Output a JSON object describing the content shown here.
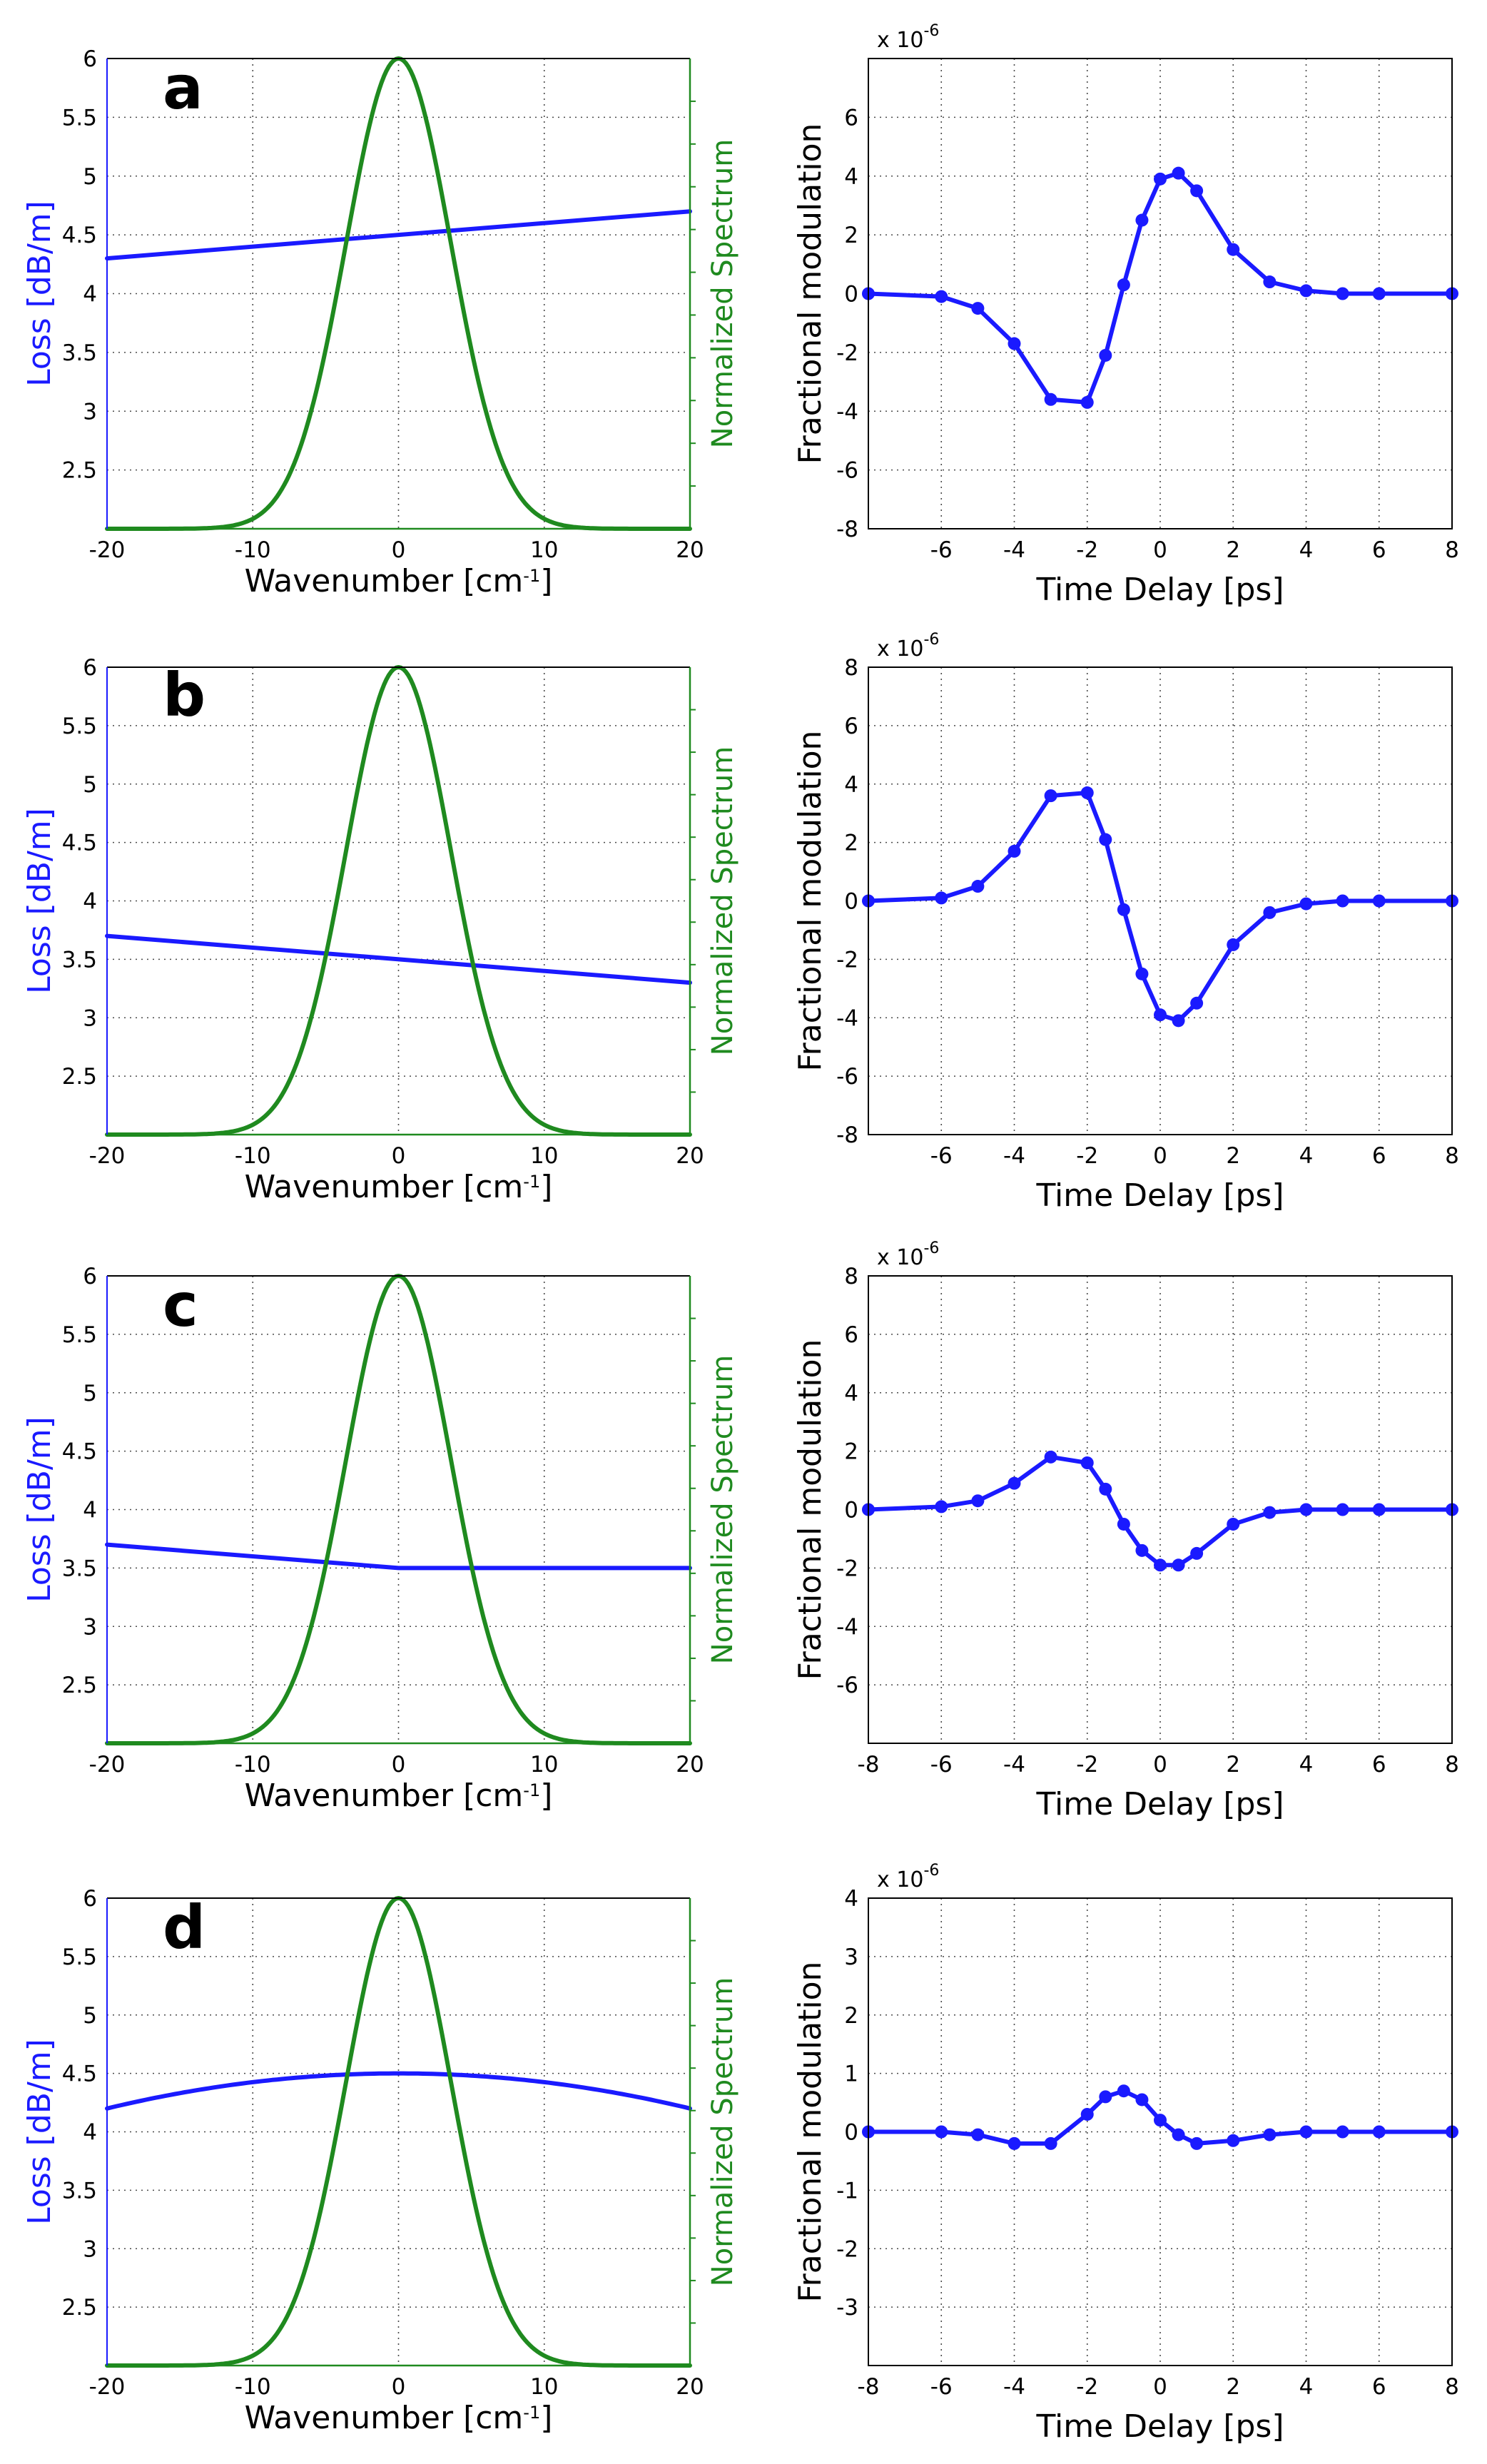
{
  "chart_data": [
    {
      "panel": "a",
      "type": "line",
      "xlabel": "Wavenumber [cm",
      "xlabel_sup": "-1",
      "xlabel_end": "]",
      "ylabel": "Loss [dB/m]",
      "y2label": "Normalized Spectrum",
      "xlim": [
        -20,
        20
      ],
      "ylim": [
        2,
        6
      ],
      "xticks": [
        -20,
        -10,
        0,
        10,
        20
      ],
      "xtick_labels": [
        "-20",
        "-10",
        "0",
        "10",
        "20"
      ],
      "yticks": [
        2.5,
        3,
        3.5,
        4,
        4.5,
        5,
        5.5,
        6
      ],
      "ytick_labels": [
        "2.5",
        "3",
        "3.5",
        "4",
        "4.5",
        "5",
        "5.5",
        "6"
      ],
      "grid": true,
      "series": [
        {
          "name": "Loss",
          "color": "#1a1aff",
          "x": [
            -20,
            20
          ],
          "y": [
            4.3,
            4.7
          ]
        },
        {
          "name": "Normalized Spectrum",
          "color": "#1f8a1f",
          "shape": "gaussian",
          "center": 0,
          "sigma": 3.6,
          "baseline": 2,
          "peak": 6
        }
      ]
    },
    {
      "panel": "a",
      "type": "line",
      "xlabel": "Time Delay [ps]",
      "ylabel": "Fractional modulation",
      "exponent_label": "x 10",
      "exponent_sup": "-6",
      "xlim": [
        -8,
        8
      ],
      "ylim": [
        -8,
        8
      ],
      "xticks": [
        -6,
        -4,
        -2,
        0,
        2,
        4,
        6,
        8
      ],
      "xtick_labels": [
        "-6",
        "-4",
        "-2",
        "0",
        "2",
        "4",
        "6",
        "8"
      ],
      "yticks": [
        -8,
        -6,
        -4,
        -2,
        0,
        2,
        4,
        6
      ],
      "ytick_labels": [
        "-8",
        "-6",
        "-4",
        "-2",
        "0",
        "2",
        "4",
        "6"
      ],
      "grid": true,
      "series": [
        {
          "name": "Fractional modulation",
          "color": "#1a1aff",
          "markers": true,
          "x": [
            -8,
            -6,
            -5,
            -4,
            -3,
            -2,
            -1.5,
            -1,
            -0.5,
            0,
            0.5,
            1,
            2,
            3,
            4,
            5,
            6,
            8
          ],
          "y": [
            0,
            -0.1,
            -0.5,
            -1.7,
            -3.6,
            -3.7,
            -2.1,
            0.3,
            2.5,
            3.9,
            4.1,
            3.5,
            1.5,
            0.4,
            0.1,
            0,
            0,
            0
          ]
        }
      ]
    },
    {
      "panel": "b",
      "type": "line",
      "xlabel": "Wavenumber [cm",
      "xlabel_sup": "-1",
      "xlabel_end": "]",
      "ylabel": "Loss [dB/m]",
      "y2label": "Normalized Spectrum",
      "xlim": [
        -20,
        20
      ],
      "ylim": [
        2,
        6
      ],
      "xticks": [
        -20,
        -10,
        0,
        10,
        20
      ],
      "xtick_labels": [
        "-20",
        "-10",
        "0",
        "10",
        "20"
      ],
      "yticks": [
        2.5,
        3,
        3.5,
        4,
        4.5,
        5,
        5.5,
        6
      ],
      "ytick_labels": [
        "2.5",
        "3",
        "3.5",
        "4",
        "4.5",
        "5",
        "5.5",
        "6"
      ],
      "grid": true,
      "series": [
        {
          "name": "Loss",
          "color": "#1a1aff",
          "x": [
            -20,
            20
          ],
          "y": [
            3.7,
            3.3
          ]
        },
        {
          "name": "Normalized Spectrum",
          "color": "#1f8a1f",
          "shape": "gaussian",
          "center": 0,
          "sigma": 3.6,
          "baseline": 2,
          "peak": 6
        }
      ]
    },
    {
      "panel": "b",
      "type": "line",
      "xlabel": "Time Delay [ps]",
      "ylabel": "Fractional modulation",
      "exponent_label": "x 10",
      "exponent_sup": "-6",
      "xlim": [
        -8,
        8
      ],
      "ylim": [
        -8,
        8
      ],
      "xticks": [
        -6,
        -4,
        -2,
        0,
        2,
        4,
        6,
        8
      ],
      "xtick_labels": [
        "-6",
        "-4",
        "-2",
        "0",
        "2",
        "4",
        "6",
        "8"
      ],
      "yticks": [
        -8,
        -6,
        -4,
        -2,
        0,
        2,
        4,
        6,
        8
      ],
      "ytick_labels": [
        "-8",
        "-6",
        "-4",
        "-2",
        "0",
        "2",
        "4",
        "6",
        "8"
      ],
      "grid": true,
      "series": [
        {
          "name": "Fractional modulation",
          "color": "#1a1aff",
          "markers": true,
          "x": [
            -8,
            -6,
            -5,
            -4,
            -3,
            -2,
            -1.5,
            -1,
            -0.5,
            0,
            0.5,
            1,
            2,
            3,
            4,
            5,
            6,
            8
          ],
          "y": [
            0,
            0.1,
            0.5,
            1.7,
            3.6,
            3.7,
            2.1,
            -0.3,
            -2.5,
            -3.9,
            -4.1,
            -3.5,
            -1.5,
            -0.4,
            -0.1,
            0,
            0,
            0
          ]
        }
      ]
    },
    {
      "panel": "c",
      "type": "line",
      "xlabel": "Wavenumber [cm",
      "xlabel_sup": "-1",
      "xlabel_end": "]",
      "ylabel": "Loss [dB/m]",
      "y2label": "Normalized Spectrum",
      "xlim": [
        -20,
        20
      ],
      "ylim": [
        2,
        6
      ],
      "xticks": [
        -20,
        -10,
        0,
        10,
        20
      ],
      "xtick_labels": [
        "-20",
        "-10",
        "0",
        "10",
        "20"
      ],
      "yticks": [
        2.5,
        3,
        3.5,
        4,
        4.5,
        5,
        5.5,
        6
      ],
      "ytick_labels": [
        "2.5",
        "3",
        "3.5",
        "4",
        "4.5",
        "5",
        "5.5",
        "6"
      ],
      "grid": true,
      "series": [
        {
          "name": "Loss",
          "color": "#1a1aff",
          "x": [
            -20,
            0,
            20
          ],
          "y": [
            3.7,
            3.5,
            3.5
          ]
        },
        {
          "name": "Normalized Spectrum",
          "color": "#1f8a1f",
          "shape": "gaussian",
          "center": 0,
          "sigma": 3.6,
          "baseline": 2,
          "peak": 6
        }
      ]
    },
    {
      "panel": "c",
      "type": "line",
      "xlabel": "Time Delay [ps]",
      "ylabel": "Fractional modulation",
      "exponent_label": "x 10",
      "exponent_sup": "-6",
      "xlim": [
        -8,
        8
      ],
      "ylim": [
        -8,
        8
      ],
      "xticks": [
        -8,
        -6,
        -4,
        -2,
        0,
        2,
        4,
        6,
        8
      ],
      "xtick_labels": [
        "-8",
        "-6",
        "-4",
        "-2",
        "0",
        "2",
        "4",
        "6",
        "8"
      ],
      "yticks": [
        -6,
        -4,
        -2,
        0,
        2,
        4,
        6,
        8
      ],
      "ytick_labels": [
        "-6",
        "-4",
        "-2",
        "0",
        "2",
        "4",
        "6",
        "8"
      ],
      "grid": true,
      "series": [
        {
          "name": "Fractional modulation",
          "color": "#1a1aff",
          "markers": true,
          "x": [
            -8,
            -6,
            -5,
            -4,
            -3,
            -2,
            -1.5,
            -1,
            -0.5,
            0,
            0.5,
            1,
            2,
            3,
            4,
            5,
            6,
            8
          ],
          "y": [
            0,
            0.1,
            0.3,
            0.9,
            1.8,
            1.6,
            0.7,
            -0.5,
            -1.4,
            -1.9,
            -1.9,
            -1.5,
            -0.5,
            -0.1,
            0,
            0,
            0,
            0
          ]
        }
      ]
    },
    {
      "panel": "d",
      "type": "line",
      "xlabel": "Wavenumber [cm",
      "xlabel_sup": "-1",
      "xlabel_end": "]",
      "ylabel": "Loss [dB/m]",
      "y2label": "Normalized Spectrum",
      "xlim": [
        -20,
        20
      ],
      "ylim": [
        2,
        6
      ],
      "xticks": [
        -20,
        -10,
        0,
        10,
        20
      ],
      "xtick_labels": [
        "-20",
        "-10",
        "0",
        "10",
        "20"
      ],
      "yticks": [
        2.5,
        3,
        3.5,
        4,
        4.5,
        5,
        5.5,
        6
      ],
      "ytick_labels": [
        "2.5",
        "3",
        "3.5",
        "4",
        "4.5",
        "5",
        "5.5",
        "6"
      ],
      "grid": true,
      "series": [
        {
          "name": "Loss",
          "color": "#1a1aff",
          "shape": "quadratic",
          "center": 0,
          "peak_value": 4.5,
          "edge_value": 4.2
        },
        {
          "name": "Normalized Spectrum",
          "color": "#1f8a1f",
          "shape": "gaussian",
          "center": 0,
          "sigma": 3.6,
          "baseline": 2,
          "peak": 6
        }
      ]
    },
    {
      "panel": "d",
      "type": "line",
      "xlabel": "Time Delay [ps]",
      "ylabel": "Fractional modulation",
      "exponent_label": "x 10",
      "exponent_sup": "-6",
      "xlim": [
        -8,
        8
      ],
      "ylim": [
        -4,
        4
      ],
      "xticks": [
        -8,
        -6,
        -4,
        -2,
        0,
        2,
        4,
        6,
        8
      ],
      "xtick_labels": [
        "-8",
        "-6",
        "-4",
        "-2",
        "0",
        "2",
        "4",
        "6",
        "8"
      ],
      "yticks": [
        -3,
        -2,
        -1,
        0,
        1,
        2,
        3,
        4
      ],
      "ytick_labels": [
        "-3",
        "-2",
        "-1",
        "0",
        "1",
        "2",
        "3",
        "4"
      ],
      "grid": true,
      "series": [
        {
          "name": "Fractional modulation",
          "color": "#1a1aff",
          "markers": true,
          "x": [
            -8,
            -6,
            -5,
            -4,
            -3,
            -2,
            -1.5,
            -1,
            -0.5,
            0,
            0.5,
            1,
            2,
            3,
            4,
            5,
            6,
            8
          ],
          "y": [
            0,
            0,
            -0.05,
            -0.2,
            -0.2,
            0.3,
            0.6,
            0.7,
            0.55,
            0.2,
            -0.05,
            -0.2,
            -0.15,
            -0.05,
            0,
            0,
            0,
            0
          ]
        }
      ]
    }
  ]
}
